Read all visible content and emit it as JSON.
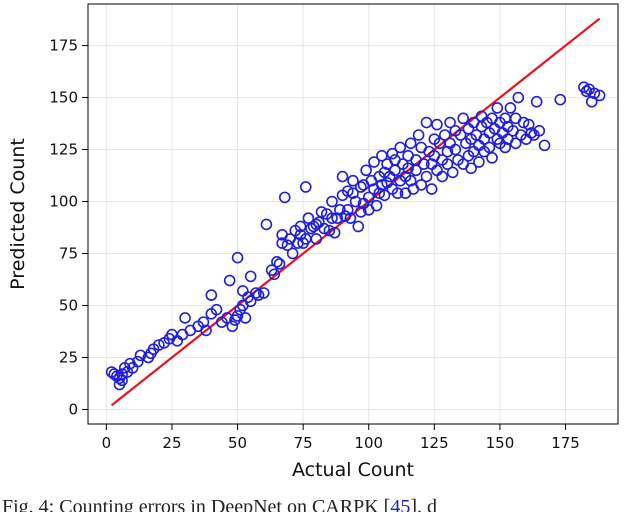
{
  "chart_data": {
    "type": "scatter",
    "title": "",
    "xlabel": "Actual Count",
    "ylabel": "Predicted Count",
    "xlim": [
      -7,
      195
    ],
    "ylim": [
      -7,
      195
    ],
    "xticks": [
      0,
      25,
      50,
      75,
      100,
      125,
      150,
      175
    ],
    "yticks": [
      0,
      25,
      50,
      75,
      100,
      125,
      150,
      175
    ],
    "grid": true,
    "colors": {
      "points": "#1f1fdc",
      "line": "#e8141c",
      "grid": "#e6e6e6",
      "axis": "#000000"
    },
    "series": [
      {
        "kind": "scatter",
        "points": [
          [
            2,
            18
          ],
          [
            3,
            17
          ],
          [
            4,
            16
          ],
          [
            5,
            15
          ],
          [
            5,
            12
          ],
          [
            6,
            14
          ],
          [
            6,
            17
          ],
          [
            7,
            20
          ],
          [
            8,
            18
          ],
          [
            9,
            22
          ],
          [
            10,
            20
          ],
          [
            12,
            23
          ],
          [
            13,
            26
          ],
          [
            16,
            25
          ],
          [
            17,
            27
          ],
          [
            18,
            29
          ],
          [
            20,
            31
          ],
          [
            22,
            32
          ],
          [
            24,
            34
          ],
          [
            25,
            36
          ],
          [
            27,
            33
          ],
          [
            29,
            36
          ],
          [
            30,
            44
          ],
          [
            32,
            38
          ],
          [
            35,
            40
          ],
          [
            37,
            42
          ],
          [
            38,
            38
          ],
          [
            40,
            46
          ],
          [
            40,
            55
          ],
          [
            42,
            48
          ],
          [
            44,
            42
          ],
          [
            46,
            44
          ],
          [
            47,
            62
          ],
          [
            48,
            40
          ],
          [
            49,
            43
          ],
          [
            50,
            73
          ],
          [
            50,
            45
          ],
          [
            51,
            48
          ],
          [
            52,
            50
          ],
          [
            52,
            57
          ],
          [
            53,
            44
          ],
          [
            54,
            54
          ],
          [
            55,
            64
          ],
          [
            55,
            52
          ],
          [
            57,
            56
          ],
          [
            58,
            55
          ],
          [
            60,
            56
          ],
          [
            61,
            89
          ],
          [
            63,
            67
          ],
          [
            64,
            65
          ],
          [
            65,
            71
          ],
          [
            66,
            70
          ],
          [
            67,
            80
          ],
          [
            67,
            84
          ],
          [
            68,
            102
          ],
          [
            69,
            79
          ],
          [
            70,
            82
          ],
          [
            71,
            75
          ],
          [
            72,
            86
          ],
          [
            73,
            80
          ],
          [
            74,
            84
          ],
          [
            74,
            88
          ],
          [
            75,
            80
          ],
          [
            76,
            82
          ],
          [
            76,
            107
          ],
          [
            77,
            92
          ],
          [
            78,
            87
          ],
          [
            79,
            88
          ],
          [
            80,
            82
          ],
          [
            80,
            89
          ],
          [
            81,
            90
          ],
          [
            82,
            95
          ],
          [
            83,
            87
          ],
          [
            84,
            94
          ],
          [
            85,
            86
          ],
          [
            86,
            92
          ],
          [
            86,
            100
          ],
          [
            87,
            85
          ],
          [
            88,
            92
          ],
          [
            89,
            96
          ],
          [
            90,
            103
          ],
          [
            90,
            112
          ],
          [
            91,
            93
          ],
          [
            92,
            96
          ],
          [
            92,
            105
          ],
          [
            93,
            92
          ],
          [
            94,
            104
          ],
          [
            94,
            110
          ],
          [
            95,
            100
          ],
          [
            96,
            88
          ],
          [
            97,
            95
          ],
          [
            97,
            107
          ],
          [
            98,
            108
          ],
          [
            98,
            99
          ],
          [
            99,
            115
          ],
          [
            100,
            96
          ],
          [
            100,
            102
          ],
          [
            101,
            110
          ],
          [
            102,
            106
          ],
          [
            102,
            119
          ],
          [
            103,
            98
          ],
          [
            104,
            112
          ],
          [
            104,
            104
          ],
          [
            105,
            108
          ],
          [
            105,
            122
          ],
          [
            106,
            114
          ],
          [
            106,
            103
          ],
          [
            107,
            118
          ],
          [
            107,
            109
          ],
          [
            108,
            112
          ],
          [
            109,
            106
          ],
          [
            109,
            123
          ],
          [
            110,
            115
          ],
          [
            110,
            120
          ],
          [
            111,
            104
          ],
          [
            112,
            110
          ],
          [
            112,
            126
          ],
          [
            113,
            118
          ],
          [
            114,
            112
          ],
          [
            114,
            104
          ],
          [
            115,
            122
          ],
          [
            115,
            116
          ],
          [
            116,
            110
          ],
          [
            116,
            128
          ],
          [
            117,
            106
          ],
          [
            118,
            120
          ],
          [
            118,
            115
          ],
          [
            119,
            132
          ],
          [
            120,
            108
          ],
          [
            120,
            126
          ],
          [
            121,
            118
          ],
          [
            122,
            112
          ],
          [
            122,
            138
          ],
          [
            123,
            124
          ],
          [
            124,
            118
          ],
          [
            124,
            106
          ],
          [
            125,
            130
          ],
          [
            125,
            122
          ],
          [
            126,
            115
          ],
          [
            126,
            137
          ],
          [
            127,
            128
          ],
          [
            128,
            120
          ],
          [
            128,
            112
          ],
          [
            129,
            132
          ],
          [
            130,
            124
          ],
          [
            130,
            118
          ],
          [
            131,
            138
          ],
          [
            131,
            128
          ],
          [
            132,
            114
          ],
          [
            133,
            125
          ],
          [
            133,
            134
          ],
          [
            134,
            120
          ],
          [
            135,
            132
          ],
          [
            136,
            118
          ],
          [
            136,
            140
          ],
          [
            137,
            128
          ],
          [
            138,
            122
          ],
          [
            138,
            135
          ],
          [
            139,
            130
          ],
          [
            139,
            116
          ],
          [
            140,
            138
          ],
          [
            140,
            124
          ],
          [
            141,
            132
          ],
          [
            142,
            127
          ],
          [
            142,
            119
          ],
          [
            143,
            136
          ],
          [
            143,
            141
          ],
          [
            144,
            130
          ],
          [
            144,
            124
          ],
          [
            145,
            138
          ],
          [
            146,
            133
          ],
          [
            146,
            126
          ],
          [
            147,
            140
          ],
          [
            147,
            121
          ],
          [
            148,
            135
          ],
          [
            149,
            130
          ],
          [
            149,
            145
          ],
          [
            150,
            138
          ],
          [
            150,
            128
          ],
          [
            151,
            133
          ],
          [
            152,
            140
          ],
          [
            152,
            126
          ],
          [
            153,
            130
          ],
          [
            153,
            136
          ],
          [
            154,
            145
          ],
          [
            155,
            134
          ],
          [
            156,
            128
          ],
          [
            156,
            140
          ],
          [
            157,
            150
          ],
          [
            158,
            132
          ],
          [
            159,
            138
          ],
          [
            160,
            130
          ],
          [
            161,
            137
          ],
          [
            162,
            133
          ],
          [
            163,
            132
          ],
          [
            164,
            148
          ],
          [
            165,
            134
          ],
          [
            167,
            127
          ],
          [
            173,
            149
          ],
          [
            182,
            155
          ],
          [
            183,
            153
          ],
          [
            184,
            154
          ],
          [
            185,
            148
          ],
          [
            186,
            152
          ],
          [
            188,
            151
          ]
        ]
      },
      {
        "kind": "line",
        "points": [
          [
            2,
            2
          ],
          [
            188,
            188
          ]
        ]
      }
    ]
  },
  "caption": {
    "text_before": "Fig. 4: Counting errors in DeepNet on CARPK [",
    "ref": "45",
    "text_after": "]. d"
  }
}
